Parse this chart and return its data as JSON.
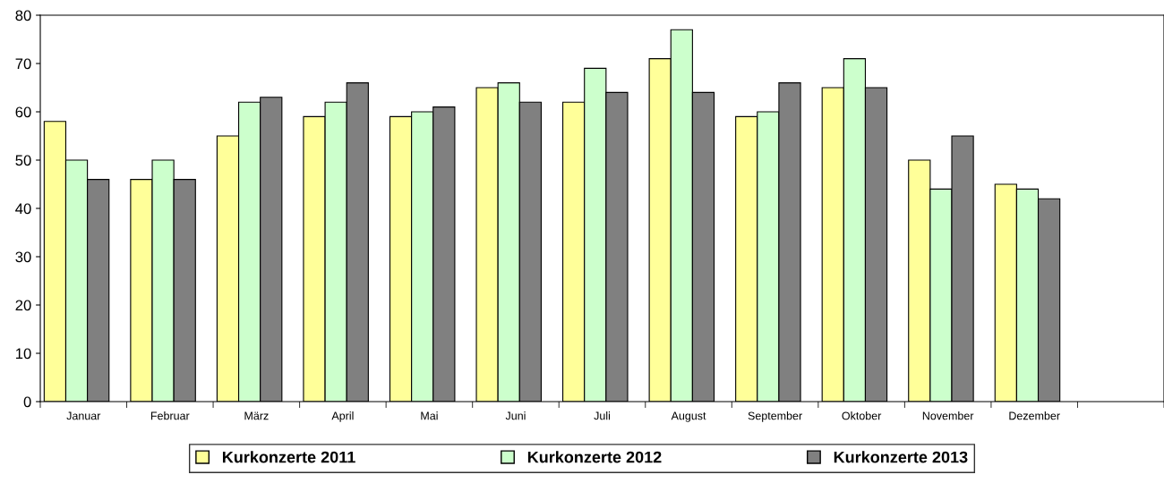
{
  "chart_data": {
    "type": "bar",
    "categories": [
      "Januar",
      "Februar",
      "März",
      "April",
      "Mai",
      "Juni",
      "Juli",
      "August",
      "September",
      "Oktober",
      "November",
      "Dezember",
      null
    ],
    "series": [
      {
        "name": "Kurkonzerte 2011",
        "color": "#ffff99",
        "values": [
          58,
          46,
          55,
          59,
          59,
          65,
          62,
          71,
          59,
          65,
          50,
          45,
          null
        ]
      },
      {
        "name": "Kurkonzerte 2012",
        "color": "#ccffcc",
        "values": [
          50,
          50,
          62,
          62,
          60,
          66,
          69,
          77,
          60,
          71,
          44,
          44,
          null
        ]
      },
      {
        "name": "Kurkonzerte 2013",
        "color": "#808080",
        "values": [
          46,
          46,
          63,
          66,
          61,
          62,
          64,
          64,
          66,
          65,
          55,
          42,
          null
        ]
      }
    ],
    "ylim": [
      0,
      80
    ],
    "yticks": [
      0,
      10,
      20,
      30,
      40,
      50,
      60,
      70,
      80
    ],
    "grid": false,
    "legend": "bottom"
  }
}
